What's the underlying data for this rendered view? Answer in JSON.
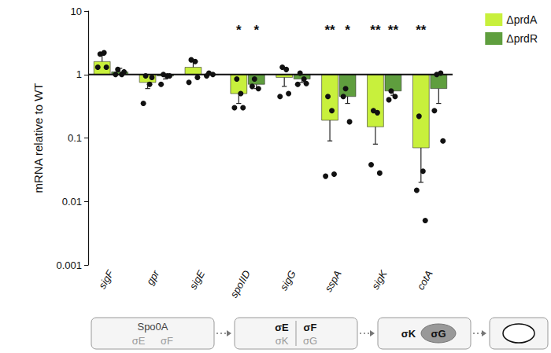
{
  "chart_data": {
    "type": "bar",
    "categories": [
      "sigF",
      "gpr",
      "sigE",
      "spoIID",
      "sigG",
      "sspA",
      "sigK",
      "cotA"
    ],
    "ylabel": "mRNA relative to WT",
    "ylim": [
      0.001,
      10
    ],
    "yticks": [
      0.001,
      0.01,
      0.1,
      1,
      10
    ],
    "log": "y",
    "grid": false,
    "legend": "top-right",
    "baseline": 1,
    "series": [
      {
        "name": "ΔprdA",
        "color": "#c8f03c",
        "values": [
          1.6,
          0.75,
          1.3,
          0.5,
          0.9,
          0.19,
          0.15,
          0.07
        ],
        "errors": [
          0.4,
          0.15,
          0.3,
          0.15,
          0.25,
          0.1,
          0.07,
          0.05
        ],
        "points": [
          [
            2.1,
            2.2,
            1.3,
            1.3
          ],
          [
            0.95,
            0.7,
            0.35,
            0.9
          ],
          [
            1.7,
            1.6,
            0.75,
            0.9
          ],
          [
            0.85,
            0.5,
            0.3,
            0.3
          ],
          [
            1.3,
            1.2,
            0.45,
            0.5
          ],
          [
            0.45,
            0.27,
            0.025,
            0.027
          ],
          [
            0.27,
            0.25,
            0.038,
            0.028
          ],
          [
            0.22,
            0.03,
            0.015,
            0.005
          ]
        ],
        "significance": [
          null,
          null,
          null,
          "*",
          null,
          "**",
          "**",
          "**"
        ]
      },
      {
        "name": "ΔprdR",
        "color": "#5f9e3e",
        "values": [
          1.1,
          0.95,
          1.0,
          0.7,
          0.85,
          0.45,
          0.55,
          0.6
        ],
        "errors": [
          0.15,
          0.1,
          0.05,
          0.1,
          0.1,
          0.1,
          0.08,
          0.25
        ],
        "points": [
          [
            1.2,
            1.0,
            1.0,
            1.1
          ],
          [
            1.0,
            0.95,
            0.7,
            0.95
          ],
          [
            1.05,
            1.0,
            0.95
          ],
          [
            0.85,
            0.6,
            0.65
          ],
          [
            1.05,
            0.85,
            0.7,
            0.72
          ],
          [
            0.6,
            0.18,
            0.45
          ],
          [
            0.55,
            0.45,
            0.4
          ],
          [
            1.0,
            1.05,
            0.27,
            0.09
          ]
        ],
        "significance": [
          null,
          null,
          null,
          "*",
          null,
          "*",
          "**",
          null
        ]
      }
    ]
  },
  "diagram": {
    "stages": [
      {
        "labels": [
          "Spo0A",
          "σE",
          "σF"
        ]
      },
      {
        "labels": [
          "σE",
          "σF",
          "σK",
          "σG"
        ]
      },
      {
        "labels": [
          "σK",
          "σG"
        ]
      },
      {
        "labels": []
      }
    ]
  }
}
